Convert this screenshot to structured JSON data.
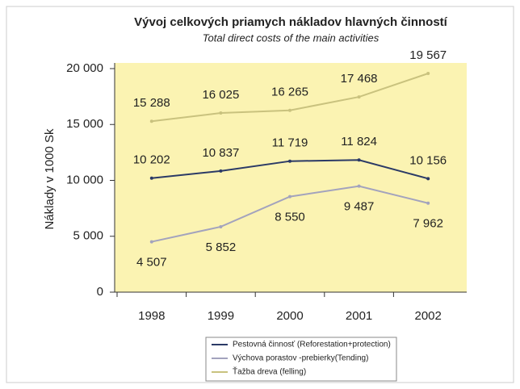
{
  "chart_data": {
    "type": "line",
    "title": "Vývoj celkových priamych nákladov hlavných činností",
    "subtitle": "Total direct costs of the main activities",
    "y_label": "Náklady v 1000 Sk",
    "categories": [
      "1998",
      "1999",
      "2000",
      "2001",
      "2002"
    ],
    "series": [
      {
        "name": "Pestovná činnosť (Reforestation+protection)",
        "color": "#2b3a66",
        "values": [
          10202,
          10837,
          11719,
          11824,
          10156
        ],
        "value_labels": [
          "10 202",
          "10 837",
          "11 719",
          "11 824",
          "10 156"
        ]
      },
      {
        "name": "Výchova porastov -prebierky(Tending)",
        "color": "#a3a3bd",
        "values": [
          4507,
          5852,
          8550,
          9487,
          7962
        ],
        "value_labels": [
          "4 507",
          "5 852",
          "8 550",
          "9 487",
          "7 962"
        ]
      },
      {
        "name": "Ťažba dreva (felling)",
        "color": "#c9c27e",
        "values": [
          15288,
          16025,
          16265,
          17468,
          19567
        ],
        "value_labels": [
          "15 288",
          "16 025",
          "16 265",
          "17 468",
          "19 567"
        ]
      }
    ],
    "ylim": [
      0,
      20000
    ],
    "yticks": [
      0,
      {
        "value": 5000,
        "label": "5 000"
      },
      {
        "value": 10000,
        "label": "10 000"
      },
      {
        "value": 15000,
        "label": "15 000"
      },
      {
        "value": 20000,
        "label": "20 000"
      }
    ],
    "legend": "bottom"
  }
}
